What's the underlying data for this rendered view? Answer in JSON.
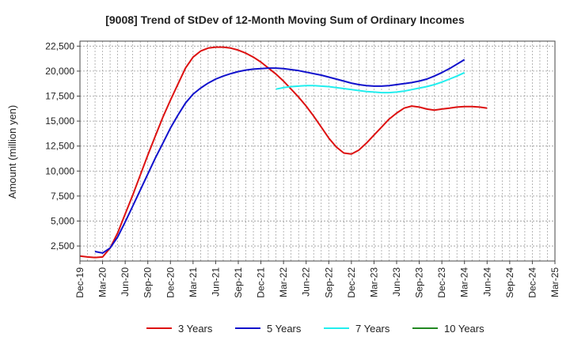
{
  "chart_data": {
    "type": "line",
    "title": "[9008]  Trend of StDev of 12-Month Moving Sum of Ordinary Incomes",
    "xlabel": "",
    "ylabel": "Amount (million yen)",
    "ylim": [
      1000,
      23000
    ],
    "y_ticks": [
      2500,
      5000,
      7500,
      10000,
      12500,
      15000,
      17500,
      20000,
      22500
    ],
    "y_tick_labels": [
      "2,500",
      "5,000",
      "7,500",
      "10,000",
      "12,500",
      "15,000",
      "17,500",
      "20,000",
      "22,500"
    ],
    "x_tick_labels": [
      "Dec-19",
      "Mar-20",
      "Jun-20",
      "Sep-20",
      "Dec-20",
      "Mar-21",
      "Jun-21",
      "Sep-21",
      "Dec-21",
      "Mar-22",
      "Jun-22",
      "Sep-22",
      "Dec-22",
      "Mar-23",
      "Jun-23",
      "Sep-23",
      "Dec-23",
      "Mar-24",
      "Jun-24",
      "Sep-24",
      "Dec-24",
      "Mar-25"
    ],
    "grid": true,
    "legend_position": "bottom",
    "series": [
      {
        "name": "3 Years",
        "color": "#dd1111",
        "points": [
          [
            0,
            1500
          ],
          [
            1,
            1400
          ],
          [
            2,
            1350
          ],
          [
            3,
            1400
          ],
          [
            4,
            2300
          ],
          [
            5,
            3800
          ],
          [
            6,
            5700
          ],
          [
            7,
            7600
          ],
          [
            8,
            9600
          ],
          [
            9,
            11600
          ],
          [
            10,
            13500
          ],
          [
            11,
            15400
          ],
          [
            12,
            17100
          ],
          [
            13,
            18700
          ],
          [
            14,
            20300
          ],
          [
            15,
            21400
          ],
          [
            16,
            22000
          ],
          [
            17,
            22300
          ],
          [
            18,
            22400
          ],
          [
            19,
            22400
          ],
          [
            20,
            22300
          ],
          [
            21,
            22100
          ],
          [
            22,
            21800
          ],
          [
            23,
            21400
          ],
          [
            24,
            20900
          ],
          [
            25,
            20300
          ],
          [
            26,
            19700
          ],
          [
            27,
            19000
          ],
          [
            28,
            18200
          ],
          [
            29,
            17400
          ],
          [
            30,
            16500
          ],
          [
            31,
            15500
          ],
          [
            32,
            14400
          ],
          [
            33,
            13300
          ],
          [
            34,
            12400
          ],
          [
            35,
            11800
          ],
          [
            36,
            11700
          ],
          [
            37,
            12100
          ],
          [
            38,
            12800
          ],
          [
            39,
            13600
          ],
          [
            40,
            14400
          ],
          [
            41,
            15200
          ],
          [
            42,
            15800
          ],
          [
            43,
            16300
          ],
          [
            44,
            16500
          ],
          [
            45,
            16400
          ],
          [
            46,
            16200
          ],
          [
            47,
            16100
          ],
          [
            48,
            16200
          ],
          [
            49,
            16300
          ],
          [
            50,
            16400
          ],
          [
            51,
            16450
          ],
          [
            52,
            16450
          ],
          [
            53,
            16400
          ],
          [
            54,
            16300
          ]
        ]
      },
      {
        "name": "5 Years",
        "color": "#1111cc",
        "points": [
          [
            2,
            1950
          ],
          [
            3,
            1800
          ],
          [
            4,
            2300
          ],
          [
            5,
            3400
          ],
          [
            6,
            4900
          ],
          [
            7,
            6500
          ],
          [
            8,
            8100
          ],
          [
            9,
            9700
          ],
          [
            10,
            11300
          ],
          [
            11,
            12800
          ],
          [
            12,
            14300
          ],
          [
            13,
            15600
          ],
          [
            14,
            16800
          ],
          [
            15,
            17700
          ],
          [
            16,
            18300
          ],
          [
            17,
            18800
          ],
          [
            18,
            19200
          ],
          [
            19,
            19500
          ],
          [
            20,
            19750
          ],
          [
            21,
            19950
          ],
          [
            22,
            20100
          ],
          [
            23,
            20200
          ],
          [
            24,
            20250
          ],
          [
            25,
            20300
          ],
          [
            26,
            20300
          ],
          [
            27,
            20250
          ],
          [
            28,
            20150
          ],
          [
            29,
            20050
          ],
          [
            30,
            19900
          ],
          [
            31,
            19750
          ],
          [
            32,
            19600
          ],
          [
            33,
            19400
          ],
          [
            34,
            19200
          ],
          [
            35,
            19000
          ],
          [
            36,
            18800
          ],
          [
            37,
            18650
          ],
          [
            38,
            18550
          ],
          [
            39,
            18500
          ],
          [
            40,
            18500
          ],
          [
            41,
            18550
          ],
          [
            42,
            18650
          ],
          [
            43,
            18750
          ],
          [
            44,
            18850
          ],
          [
            45,
            19000
          ],
          [
            46,
            19200
          ],
          [
            47,
            19500
          ],
          [
            48,
            19850
          ],
          [
            49,
            20250
          ],
          [
            50,
            20700
          ],
          [
            51,
            21150
          ]
        ]
      },
      {
        "name": "7 Years",
        "color": "#22eeee",
        "points": [
          [
            26,
            18200
          ],
          [
            27,
            18350
          ],
          [
            28,
            18450
          ],
          [
            29,
            18500
          ],
          [
            30,
            18550
          ],
          [
            31,
            18550
          ],
          [
            32,
            18500
          ],
          [
            33,
            18450
          ],
          [
            34,
            18350
          ],
          [
            35,
            18250
          ],
          [
            36,
            18150
          ],
          [
            37,
            18050
          ],
          [
            38,
            17950
          ],
          [
            39,
            17900
          ],
          [
            40,
            17850
          ],
          [
            41,
            17850
          ],
          [
            42,
            17900
          ],
          [
            43,
            18000
          ],
          [
            44,
            18150
          ],
          [
            45,
            18300
          ],
          [
            46,
            18450
          ],
          [
            47,
            18650
          ],
          [
            48,
            18900
          ],
          [
            49,
            19200
          ],
          [
            50,
            19500
          ],
          [
            51,
            19850
          ]
        ]
      },
      {
        "name": "10 Years",
        "color": "#228822",
        "points": []
      }
    ]
  }
}
